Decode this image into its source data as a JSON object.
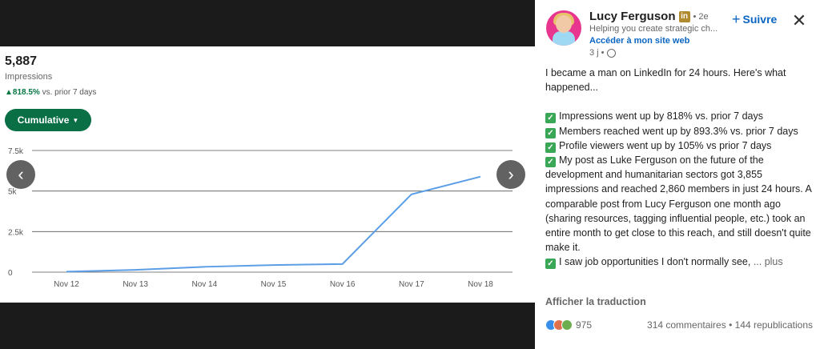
{
  "media": {
    "metric_value": "5,887",
    "metric_label": "Impressions",
    "change_pct": "▲818.5%",
    "change_suffix": " vs. prior 7 days",
    "filter_button": "Cumulative",
    "prev_icon": "chevron-left-icon",
    "next_icon": "chevron-right-icon"
  },
  "chart_data": {
    "type": "line",
    "title": "",
    "xlabel": "",
    "ylabel": "",
    "categories": [
      "Nov 12",
      "Nov 13",
      "Nov 14",
      "Nov 15",
      "Nov 16",
      "Nov 17",
      "Nov 18"
    ],
    "y_ticks": [
      "7.5k",
      "5k",
      "2.5k",
      "0"
    ],
    "ylim": [
      0,
      7500
    ],
    "grid": true,
    "legend": "none",
    "color": "#5b9ee6",
    "series": [
      {
        "values": [
          30,
          140,
          330,
          440,
          500,
          4800,
          5887
        ]
      }
    ]
  },
  "post": {
    "author": "Lucy Ferguson",
    "degree": "• 2e",
    "headline": "Helping you create strategic ch...",
    "website": "Accéder à mon site web",
    "time": "3 j •",
    "follow": "Suivre",
    "close_icon": "close-icon",
    "intro": "I became a man on LinkedIn for 24 hours. Here's what happened...",
    "bullets": [
      "Impressions went up by 818% vs. prior 7 days",
      "Members reached went up by 893.3% vs. prior 7 days",
      "Profile viewers went up by 105% vs prior 7 days",
      "My post as Luke Ferguson on the future of the development and humanitarian sectors got 3,855 impressions and reached 2,860 members in just 24 hours. A comparable post from Lucy Ferguson one month ago (sharing resources, tagging influential people, etc.) took an entire month to get close to this reach, and still doesn't quite make it.",
      "I saw job opportunities I don't normally see,"
    ],
    "more": "... plus",
    "translate": "Afficher la traduction",
    "reactions_count": "975",
    "comments": "314 commentaires • 144 republications"
  }
}
